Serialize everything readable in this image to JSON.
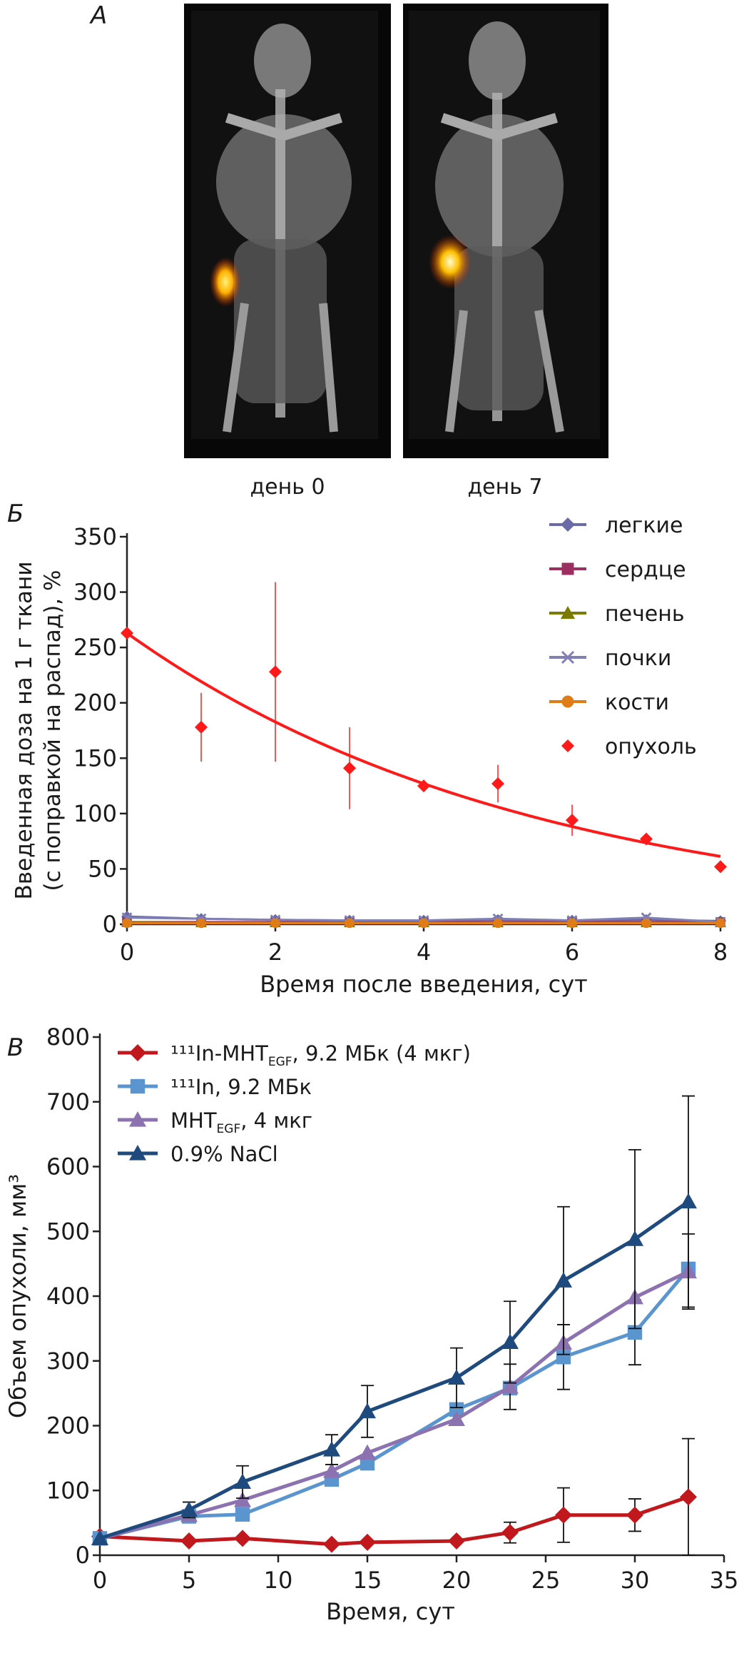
{
  "panel_a": {
    "letter": "А",
    "captions": [
      "день 0",
      "день 7"
    ]
  },
  "panel_b": {
    "letter": "Б"
  },
  "panel_c": {
    "letter": "В"
  },
  "chart_data": [
    {
      "type": "scatter",
      "xlabel": "Время после введения, сут",
      "ylabel_lines": [
        "Введенная доза на 1 г ткани",
        "(с поправкой на распад), %"
      ],
      "xlim": [
        0,
        8
      ],
      "ylim": [
        0,
        350
      ],
      "xticks": [
        0,
        2,
        4,
        6,
        8
      ],
      "yticks": [
        0,
        50,
        100,
        150,
        200,
        250,
        300,
        350
      ],
      "legend_position": "right",
      "series": [
        {
          "name": "легкие",
          "color": "#6a6aa8",
          "marker": "diamond",
          "x": [
            0,
            1,
            2,
            3,
            4,
            5,
            6,
            7,
            8
          ],
          "y": [
            7,
            5,
            4,
            3.5,
            3.5,
            4,
            3.5,
            4,
            3
          ]
        },
        {
          "name": "сердце",
          "color": "#9b3060",
          "marker": "square",
          "x": [
            0,
            1,
            2,
            3,
            4,
            5,
            6,
            7,
            8
          ],
          "y": [
            2,
            2,
            2,
            2,
            2,
            2,
            2,
            2,
            2
          ]
        },
        {
          "name": "печень",
          "color": "#7a7a00",
          "marker": "triangle",
          "x": [
            0,
            1,
            2,
            3,
            4,
            5,
            6,
            7,
            8
          ],
          "y": [
            2,
            1.5,
            1.5,
            1.5,
            1.5,
            1.5,
            1.5,
            1.5,
            1.5
          ]
        },
        {
          "name": "почки",
          "color": "#7f7fb5",
          "marker": "x",
          "x": [
            0,
            1,
            2,
            3,
            4,
            5,
            6,
            7,
            8
          ],
          "y": [
            6,
            5,
            4,
            3.5,
            3.5,
            5,
            3.5,
            6,
            2
          ]
        },
        {
          "name": "кости",
          "color": "#e07c18",
          "marker": "circle",
          "x": [
            0,
            1,
            2,
            3,
            4,
            5,
            6,
            7,
            8
          ],
          "y": [
            1,
            1,
            1,
            1,
            1,
            1,
            1,
            1,
            1
          ]
        },
        {
          "name": "опухоль",
          "color": "#ff1a1a",
          "marker": "diamond",
          "noline": true,
          "x": [
            0,
            1,
            2,
            3,
            4,
            5,
            6,
            7,
            8
          ],
          "y": [
            263,
            178,
            228,
            141,
            125,
            127,
            94,
            77,
            52
          ],
          "err": [
            0,
            31,
            81,
            37,
            0,
            17,
            14,
            0,
            0
          ],
          "fit": {
            "type": "exponential",
            "y0": 263,
            "k": 0.182
          }
        }
      ]
    },
    {
      "type": "line",
      "xlabel": "Время, сут",
      "ylabel": "Объем опухоли, мм³",
      "xlim": [
        0,
        35
      ],
      "ylim": [
        0,
        800
      ],
      "xticks": [
        0,
        5,
        10,
        15,
        20,
        25,
        30,
        35
      ],
      "yticks": [
        0,
        100,
        200,
        300,
        400,
        500,
        600,
        700,
        800
      ],
      "legend_position": "top-left",
      "series": [
        {
          "name": "¹¹¹In-МНТ",
          "name_sub": "EGF",
          "name_tail": ", 9.2 МБк (4 мкг)",
          "color": "#c0181c",
          "marker": "diamond",
          "x": [
            0,
            5,
            8,
            13,
            15,
            20,
            23,
            26,
            30,
            33
          ],
          "y": [
            29,
            22,
            26,
            17,
            20,
            22,
            35,
            62,
            62,
            90
          ],
          "err": [
            0,
            0,
            0,
            0,
            0,
            0,
            16,
            42,
            25,
            90
          ]
        },
        {
          "name": "¹¹¹In",
          "name_sub": "",
          "name_tail": ", 9.2 МБк",
          "color": "#5b95d0",
          "marker": "square",
          "x": [
            0,
            5,
            8,
            13,
            15,
            20,
            23,
            26,
            30,
            33
          ],
          "y": [
            26,
            60,
            63,
            117,
            142,
            225,
            258,
            306,
            344,
            442
          ],
          "err": [
            0,
            0,
            0,
            0,
            0,
            0,
            0,
            50,
            50,
            0
          ]
        },
        {
          "name": "МНТ",
          "name_sub": "EGF",
          "name_tail": ", 4 мкг",
          "color": "#8c72b0",
          "marker": "triangle",
          "x": [
            0,
            5,
            8,
            13,
            15,
            20,
            23,
            26,
            30,
            33
          ],
          "y": [
            26,
            62,
            85,
            130,
            158,
            210,
            260,
            328,
            398,
            438
          ],
          "err": [
            0,
            0,
            0,
            0,
            0,
            0,
            35,
            0,
            0,
            58
          ]
        },
        {
          "name": "0.9% NaCl",
          "name_sub": "",
          "name_tail": "",
          "color": "#1f4a7e",
          "marker": "triangle",
          "x": [
            0,
            5,
            8,
            13,
            15,
            20,
            23,
            26,
            30,
            33
          ],
          "y": [
            26,
            70,
            113,
            163,
            222,
            274,
            329,
            424,
            488,
            546
          ],
          "err": [
            0,
            12,
            25,
            23,
            40,
            46,
            63,
            114,
            138,
            163
          ]
        }
      ]
    }
  ]
}
